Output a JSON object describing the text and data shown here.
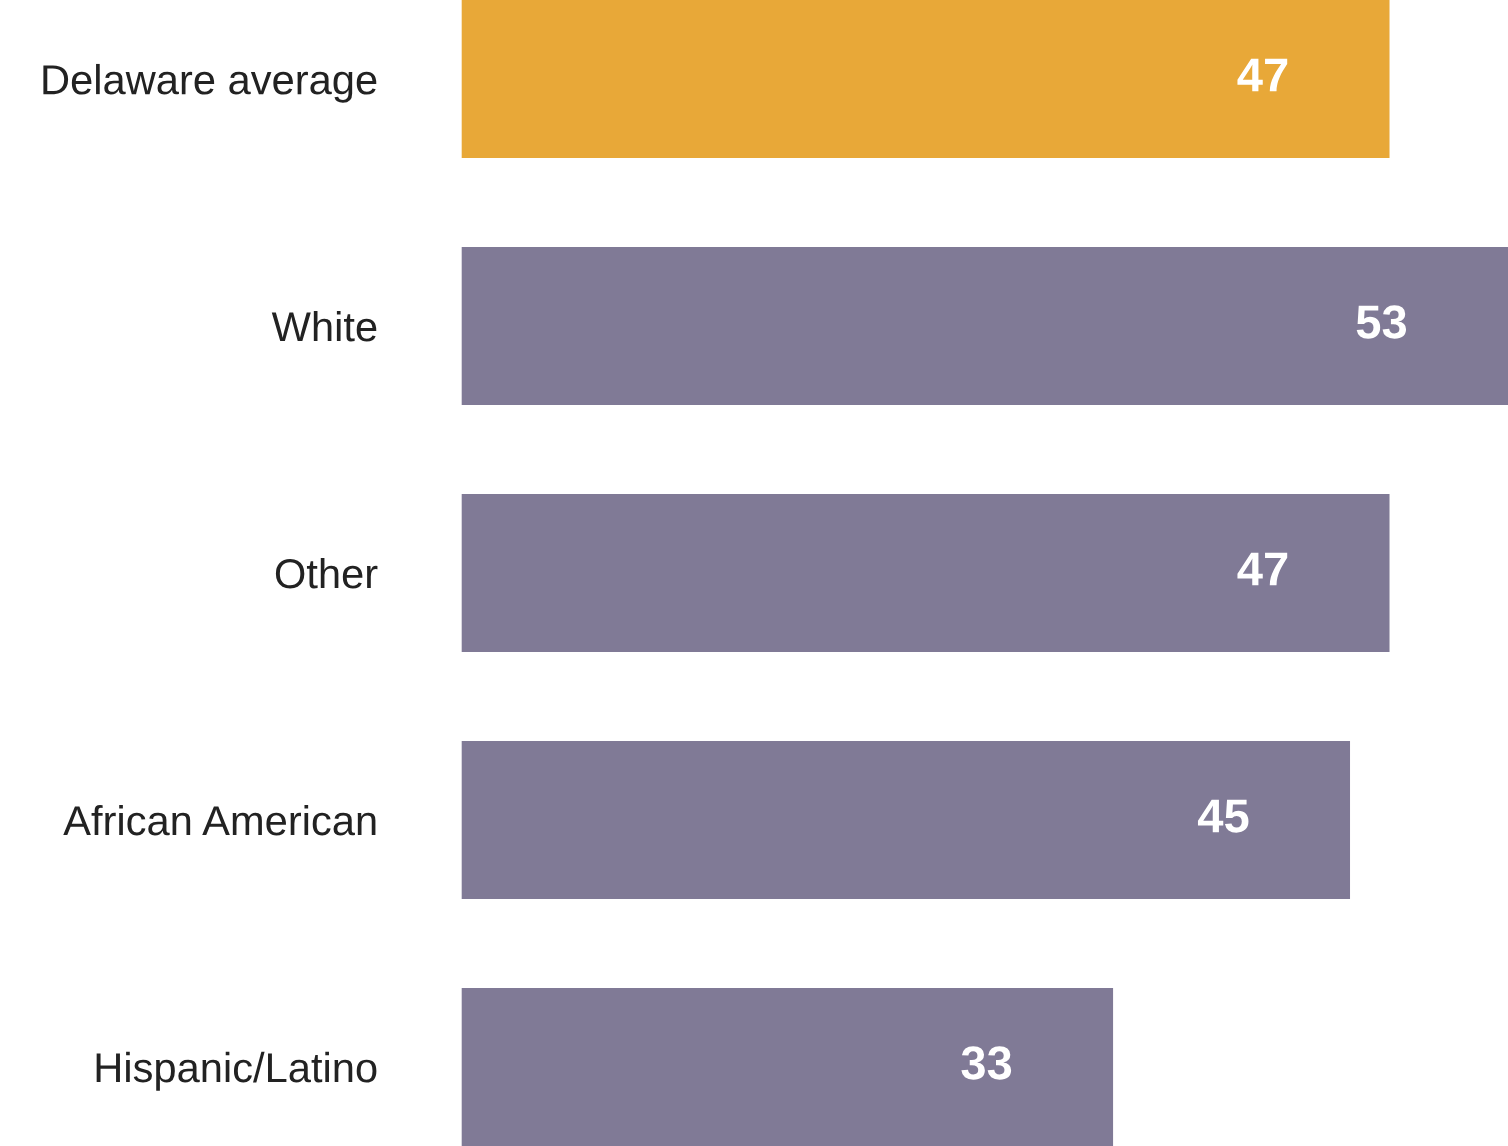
{
  "chart_data": {
    "type": "bar",
    "orientation": "horizontal",
    "categories": [
      "Delaware average",
      "White",
      "Other",
      "African American",
      "Hispanic/Latino"
    ],
    "values": [
      47,
      53,
      47,
      45,
      33
    ],
    "colors": [
      "#e8a838",
      "#807a96",
      "#807a96",
      "#807a96",
      "#807a96"
    ],
    "data_labels": true,
    "grid": false,
    "legend": false,
    "tick_labels": "y"
  }
}
